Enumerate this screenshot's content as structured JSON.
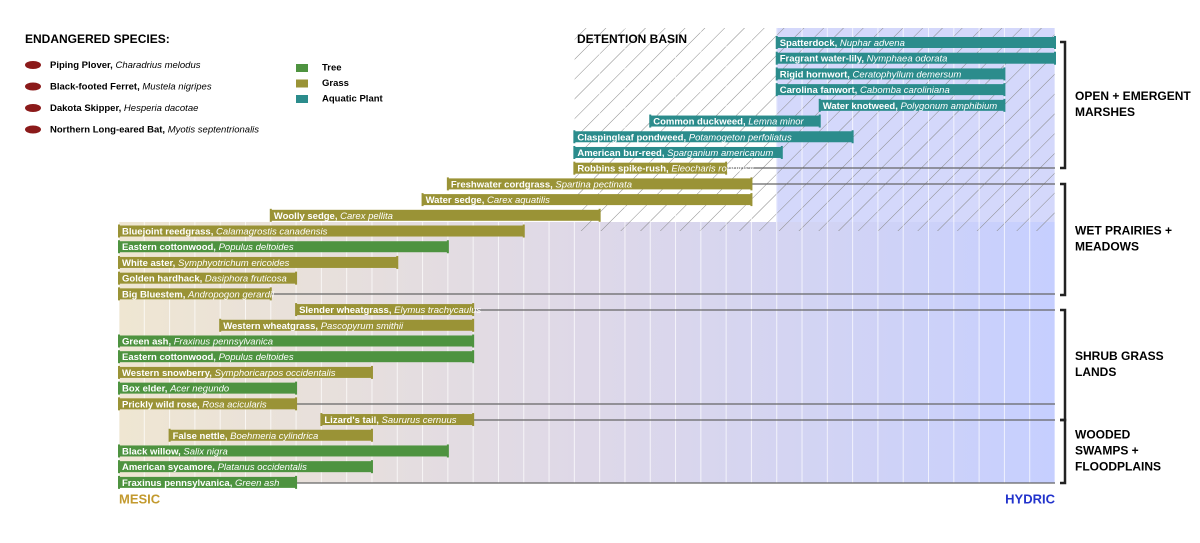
{
  "title": "ENDANGERED SPECIES:",
  "species": [
    {
      "name": "Piping Plover,",
      "scientific": "Charadrius melodus"
    },
    {
      "name": "Black-footed Ferret,",
      "scientific": "Mustela nigripes"
    },
    {
      "name": "Dakota Skipper,",
      "scientific": "Hesperia dacotae"
    },
    {
      "name": "Northern Long-eared Bat,",
      "scientific": "Myotis septentrionalis"
    }
  ],
  "legend": [
    {
      "label": "Tree",
      "color": "#4e9340"
    },
    {
      "label": "Grass",
      "color": "#9a9336"
    },
    {
      "label": "Aquatic Plant",
      "color": "#2b8c8c"
    }
  ],
  "detention_basin": "DETENTION BASIN",
  "gradient": {
    "start_label": "MESIC",
    "end_label": "HYDRIC",
    "range": [
      0,
      37
    ]
  },
  "groups": [
    {
      "lines": [
        "OPEN + EMERGENT",
        "MARSHES"
      ]
    },
    {
      "lines": [
        "WET PRAIRIES +",
        "MEADOWS"
      ]
    },
    {
      "lines": [
        "SHRUB GRASS",
        "LANDS"
      ]
    },
    {
      "lines": [
        "WOODED",
        "SWAMPS +",
        "FLOODPLAINS"
      ]
    }
  ],
  "rows": [
    {
      "name": "Spatterdock,",
      "scientific": "Nuphar advena",
      "type": 2,
      "start": 26,
      "end": 37
    },
    {
      "name": "Fragrant water-lily,",
      "scientific": "Nymphaea odorata",
      "type": 2,
      "start": 26,
      "end": 37
    },
    {
      "name": "Rigid hornwort,",
      "scientific": "Ceratophyllum demersum",
      "type": 2,
      "start": 26,
      "end": 35
    },
    {
      "name": "Carolina fanwort,",
      "scientific": "Cabomba caroliniana",
      "type": 2,
      "start": 26,
      "end": 35
    },
    {
      "name": "Water knotweed,",
      "scientific": "Polygonum amphibium",
      "type": 2,
      "start": 27.7,
      "end": 35
    },
    {
      "name": "Common duckweed,",
      "scientific": "Lemna minor",
      "type": 2,
      "start": 21,
      "end": 27.7
    },
    {
      "name": "Claspingleaf pondweed,",
      "scientific": "Potamogeton perfoliatus",
      "type": 2,
      "start": 18,
      "end": 29
    },
    {
      "name": "American bur-reed,",
      "scientific": "Sparganium americanum",
      "type": 2,
      "start": 18,
      "end": 26.2
    },
    {
      "name": "Robbins spike-rush,",
      "scientific": "Eleocharis robbinsii",
      "type": 1,
      "start": 18,
      "end": 24
    },
    {
      "name": "Freshwater cordgrass,",
      "scientific": "Spartina pectinata",
      "type": 1,
      "start": 13,
      "end": 25
    },
    {
      "name": "Water sedge,",
      "scientific": "Carex aquatilis",
      "type": 1,
      "start": 12,
      "end": 25
    },
    {
      "name": "Woolly sedge,",
      "scientific": "Carex pellita",
      "type": 1,
      "start": 6,
      "end": 19
    },
    {
      "name": "Bluejoint reedgrass,",
      "scientific": "Calamagrostis canadensis",
      "type": 1,
      "start": 0,
      "end": 16
    },
    {
      "name": "Eastern cottonwood,",
      "scientific": "Populus deltoides",
      "type": 0,
      "start": 0,
      "end": 13
    },
    {
      "name": "White aster,",
      "scientific": "Symphyotrichum ericoides",
      "type": 1,
      "start": 0,
      "end": 11
    },
    {
      "name": "Golden hardhack,",
      "scientific": "Dasiphora fruticosa",
      "type": 1,
      "start": 0,
      "end": 7
    },
    {
      "name": "Big Bluestem,",
      "scientific": "Andropogon gerardii",
      "type": 1,
      "start": 0,
      "end": 6
    },
    {
      "name": "Slender wheatgrass,",
      "scientific": "Elymus trachycaulus",
      "type": 1,
      "start": 7,
      "end": 14
    },
    {
      "name": "Western wheatgrass,",
      "scientific": "Pascopyrum smithii",
      "type": 1,
      "start": 4,
      "end": 14
    },
    {
      "name": "Green ash,",
      "scientific": "Fraxinus pennsylvanica",
      "type": 0,
      "start": 0,
      "end": 14
    },
    {
      "name": "Eastern cottonwood,",
      "scientific": "Populus deltoides",
      "type": 0,
      "start": 0,
      "end": 14
    },
    {
      "name": "Western snowberry,",
      "scientific": "Symphoricarpos occidentalis",
      "type": 1,
      "start": 0,
      "end": 10
    },
    {
      "name": "Box elder,",
      "scientific": "Acer negundo",
      "type": 0,
      "start": 0,
      "end": 7
    },
    {
      "name": "Prickly wild rose,",
      "scientific": "Rosa acicularis",
      "type": 1,
      "start": 0,
      "end": 7
    },
    {
      "name": "Lizard's tail,",
      "scientific": "Saururus cernuus",
      "type": 1,
      "start": 8,
      "end": 14
    },
    {
      "name": "False nettle,",
      "scientific": "Boehmeria cylindrica",
      "type": 1,
      "start": 2,
      "end": 10
    },
    {
      "name": "Black willow,",
      "scientific": "Salix nigra",
      "type": 0,
      "start": 0,
      "end": 13
    },
    {
      "name": "American sycamore,",
      "scientific": "Platanus occidentalis",
      "type": 0,
      "start": 0,
      "end": 10
    },
    {
      "name": "Fraxinus pennsylvanica,",
      "scientific": "Green ash",
      "type": 0,
      "start": 0,
      "end": 7
    }
  ]
}
